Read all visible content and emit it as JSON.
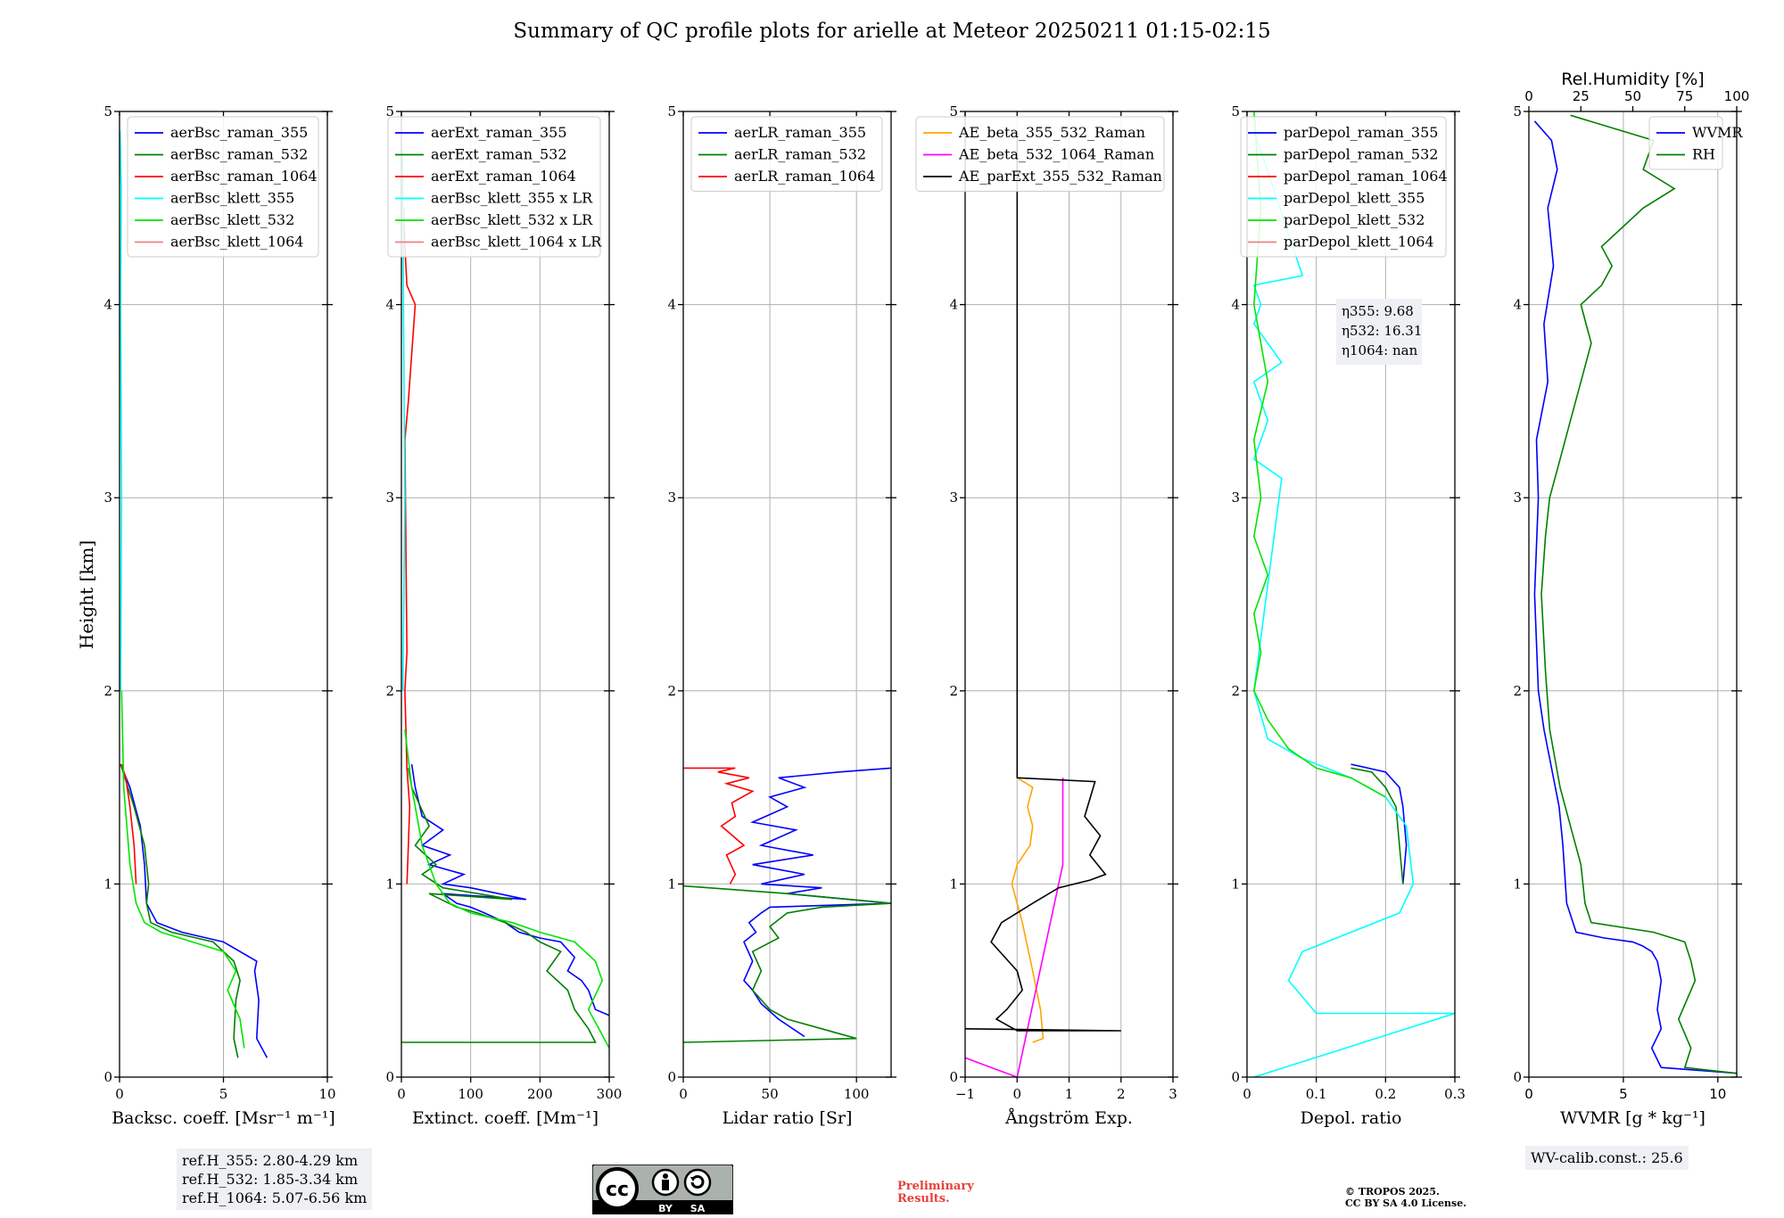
{
  "title": "Summary of QC profile plots for arielle at Meteor 20250211 01:15-02:15",
  "y_label": "Height [km]",
  "ref_heights": [
    "ref.H_355: 2.80-4.29 km",
    "ref.H_532: 1.85-3.34 km",
    "ref.H_1064: 5.07-6.56 km"
  ],
  "wv_calib": "WV-calib.const.: 25.6",
  "prelim": [
    "Preliminary",
    "Results."
  ],
  "copyright": [
    "© TROPOS 2025.",
    "CC BY SA 4.0 License."
  ],
  "cc_badge": {
    "by": "BY",
    "sa": "SA",
    "cc": "cc"
  },
  "colors": {
    "blue": "#0000ff",
    "green": "#008000",
    "red": "#ff0000",
    "cyan": "#00ffff",
    "lime": "#00e600",
    "pink": "#f08080",
    "orange": "#ffa500",
    "magenta": "#ff00ff",
    "black": "#000000"
  },
  "chart_data": [
    {
      "type": "line",
      "xlabel": "Backsc. coeff. [Msr⁻¹ m⁻¹]",
      "ylabel": "Height [km]",
      "xlim": [
        0,
        10
      ],
      "ylim": [
        0,
        5
      ],
      "xticks": [
        0,
        5,
        10
      ],
      "yticks": [
        0,
        1,
        2,
        3,
        4,
        5
      ],
      "grid": true,
      "legend": "top-right",
      "series": [
        {
          "name": "aerBsc_raman_355",
          "color": "#0000ff",
          "x": [
            7.1,
            6.6,
            6.7,
            6.5,
            6.6,
            5.0,
            3.0,
            1.8,
            1.3,
            1.2,
            1.0,
            0.5,
            0.05
          ],
          "y": [
            0.1,
            0.2,
            0.4,
            0.55,
            0.6,
            0.7,
            0.75,
            0.8,
            0.9,
            1.1,
            1.3,
            1.5,
            1.62
          ]
        },
        {
          "name": "aerBsc_raman_532",
          "color": "#008000",
          "x": [
            5.7,
            5.5,
            5.6,
            5.8,
            5.5,
            4.5,
            2.5,
            1.5,
            1.3,
            1.4,
            1.2,
            0.7,
            0.05
          ],
          "y": [
            0.1,
            0.2,
            0.4,
            0.5,
            0.6,
            0.7,
            0.75,
            0.8,
            0.9,
            1.0,
            1.2,
            1.4,
            1.62
          ]
        },
        {
          "name": "aerBsc_raman_1064",
          "color": "#ff0000",
          "x": [
            0.8,
            0.7,
            0.5,
            0.3,
            0.1
          ],
          "y": [
            1.0,
            1.2,
            1.4,
            1.55,
            1.62
          ]
        },
        {
          "name": "aerBsc_klett_355",
          "color": "#00ffff",
          "x": [
            0.05,
            0.1,
            0.05,
            0.08,
            0.02
          ],
          "y": [
            2.0,
            3.0,
            4.0,
            4.6,
            4.9
          ]
        },
        {
          "name": "aerBsc_klett_532",
          "color": "#00e600",
          "x": [
            6.0,
            5.8,
            5.2,
            5.6,
            5.0,
            3.5,
            2.0,
            1.2,
            0.8,
            0.5,
            0.2,
            0.1
          ],
          "y": [
            0.15,
            0.3,
            0.45,
            0.55,
            0.65,
            0.7,
            0.75,
            0.8,
            0.9,
            1.1,
            1.5,
            2.0
          ]
        },
        {
          "name": "aerBsc_klett_1064",
          "color": "#f08080",
          "x": [],
          "y": []
        }
      ]
    },
    {
      "type": "line",
      "xlabel": "Extinct. coeff. [Mm⁻¹]",
      "ylabel": "",
      "xlim": [
        0,
        300
      ],
      "ylim": [
        0,
        5
      ],
      "xticks": [
        0,
        100,
        200,
        300
      ],
      "yticks": [
        0,
        1,
        2,
        3,
        4,
        5
      ],
      "grid": true,
      "legend": "top-right",
      "series": [
        {
          "name": "aerExt_raman_355",
          "color": "#0000ff",
          "x": [
            300,
            280,
            270,
            260,
            240,
            250,
            230,
            200,
            170,
            150,
            120,
            100,
            80,
            60,
            180,
            100,
            60,
            90,
            40,
            70,
            30,
            60,
            30,
            20,
            15
          ],
          "y": [
            0.32,
            0.35,
            0.45,
            0.5,
            0.55,
            0.62,
            0.7,
            0.72,
            0.75,
            0.8,
            0.85,
            0.88,
            0.9,
            0.95,
            0.92,
            0.98,
            1.0,
            1.05,
            1.1,
            1.15,
            1.2,
            1.28,
            1.35,
            1.5,
            1.62
          ]
        },
        {
          "name": "aerExt_raman_532",
          "color": "#008000",
          "x": [
            0,
            280,
            270,
            250,
            240,
            210,
            230,
            200,
            180,
            150,
            110,
            80,
            40,
            160,
            60,
            30,
            50,
            20,
            40,
            15,
            10
          ],
          "y": [
            0.18,
            0.18,
            0.25,
            0.35,
            0.45,
            0.55,
            0.65,
            0.7,
            0.75,
            0.8,
            0.85,
            0.88,
            0.95,
            0.92,
            0.98,
            1.05,
            1.1,
            1.2,
            1.3,
            1.5,
            1.6
          ]
        },
        {
          "name": "aerExt_raman_1064",
          "color": "#ff0000",
          "x": [
            8,
            10,
            12,
            8,
            5,
            8,
            5,
            10,
            20,
            8,
            5,
            3
          ],
          "y": [
            1.0,
            1.2,
            1.4,
            1.6,
            2.0,
            2.2,
            3.3,
            3.5,
            4.0,
            4.1,
            4.3,
            4.5
          ]
        },
        {
          "name": "aerBsc_klett_355 x LR",
          "color": "#00ffff",
          "x": [
            2,
            5,
            3,
            2
          ],
          "y": [
            2.0,
            3.0,
            4.0,
            4.8
          ]
        },
        {
          "name": "aerBsc_klett_532 x LR",
          "color": "#00e600",
          "x": [
            300,
            285,
            270,
            290,
            280,
            250,
            200,
            160,
            100,
            70,
            50,
            30,
            15,
            5
          ],
          "y": [
            0.15,
            0.25,
            0.35,
            0.5,
            0.6,
            0.7,
            0.75,
            0.8,
            0.85,
            0.9,
            1.0,
            1.2,
            1.5,
            1.8
          ]
        },
        {
          "name": "aerBsc_klett_1064 x LR",
          "color": "#f08080",
          "x": [],
          "y": []
        }
      ]
    },
    {
      "type": "line",
      "xlabel": "Lidar ratio [Sr]",
      "ylabel": "",
      "xlim": [
        0,
        120
      ],
      "ylim": [
        0,
        5
      ],
      "xticks": [
        0,
        50,
        100
      ],
      "yticks": [
        0,
        1,
        2,
        3,
        4,
        5
      ],
      "grid": true,
      "legend": "top-right",
      "series": [
        {
          "name": "aerLR_raman_355",
          "color": "#0000ff",
          "x": [
            70,
            55,
            45,
            40,
            35,
            40,
            35,
            42,
            38,
            45,
            50,
            120,
            60,
            80,
            45,
            70,
            40,
            75,
            45,
            65,
            40,
            60,
            50,
            70,
            55,
            90,
            120
          ],
          "y": [
            0.21,
            0.3,
            0.38,
            0.45,
            0.5,
            0.6,
            0.7,
            0.75,
            0.8,
            0.85,
            0.88,
            0.9,
            0.95,
            0.98,
            1.0,
            1.05,
            1.1,
            1.15,
            1.2,
            1.28,
            1.32,
            1.4,
            1.45,
            1.5,
            1.55,
            1.58,
            1.6
          ]
        },
        {
          "name": "aerLR_raman_532",
          "color": "#008000",
          "x": [
            0,
            100,
            80,
            60,
            50,
            40,
            45,
            40,
            55,
            50,
            60,
            80,
            120,
            60,
            0
          ],
          "y": [
            0.18,
            0.2,
            0.25,
            0.3,
            0.35,
            0.45,
            0.55,
            0.65,
            0.72,
            0.78,
            0.85,
            0.88,
            0.9,
            0.95,
            0.99
          ]
        },
        {
          "name": "aerLR_raman_1064",
          "color": "#ff0000",
          "x": [
            27,
            30,
            25,
            35,
            22,
            30,
            28,
            40,
            25,
            38,
            20,
            30,
            0
          ],
          "y": [
            1.0,
            1.05,
            1.15,
            1.2,
            1.3,
            1.35,
            1.42,
            1.48,
            1.52,
            1.55,
            1.58,
            1.6,
            1.6
          ]
        }
      ]
    },
    {
      "type": "line",
      "xlabel": "Ångström Exp.",
      "ylabel": "",
      "xlim": [
        -1,
        3
      ],
      "ylim": [
        0,
        5
      ],
      "xticks": [
        -1,
        0,
        1,
        2,
        3
      ],
      "yticks": [
        0,
        1,
        2,
        3,
        4,
        5
      ],
      "grid": true,
      "legend": "top-right",
      "series": [
        {
          "name": "AE_beta_355_532_Raman",
          "color": "#ffa500",
          "x": [
            0.3,
            0.5,
            0.45,
            0.3,
            0.1,
            -0.1,
            0.0,
            0.25,
            0.3,
            0.2,
            0.3,
            0.0
          ],
          "y": [
            0.18,
            0.2,
            0.35,
            0.55,
            0.8,
            1.0,
            1.1,
            1.2,
            1.3,
            1.4,
            1.5,
            1.55
          ]
        },
        {
          "name": "AE_beta_532_1064_Raman",
          "color": "#ff00ff",
          "x": [
            -1,
            -0.5,
            0.0,
            0.88,
            0.88
          ],
          "y": [
            0.1,
            0.05,
            0.0,
            1.1,
            1.55
          ]
        },
        {
          "name": "AE_parExt_355_532_Raman",
          "color": "#000000",
          "x": [
            -1,
            2.0,
            0.0,
            -0.4,
            -0.2,
            0.1,
            0.0,
            -0.5,
            -0.3,
            0.3,
            0.8,
            1.4,
            1.7,
            1.4,
            1.6,
            1.3,
            1.5,
            0.0,
            0.0
          ],
          "y": [
            0.25,
            0.24,
            0.24,
            0.3,
            0.35,
            0.45,
            0.55,
            0.7,
            0.8,
            0.9,
            0.98,
            1.02,
            1.05,
            1.15,
            1.25,
            1.35,
            1.53,
            1.55,
            4.9
          ]
        }
      ]
    },
    {
      "type": "line",
      "xlabel": "Depol. ratio",
      "ylabel": "",
      "xlim": [
        0,
        0.3
      ],
      "ylim": [
        0,
        5
      ],
      "xticks": [
        0,
        0.1,
        0.2,
        0.3
      ],
      "yticks": [
        0,
        1,
        2,
        3,
        4,
        5
      ],
      "grid": true,
      "legend": "top-right",
      "series": [
        {
          "name": "parDepol_raman_355",
          "color": "#0000ff",
          "x": [
            0.225,
            0.23,
            0.225,
            0.22,
            0.2,
            0.15
          ],
          "y": [
            1.0,
            1.2,
            1.4,
            1.5,
            1.58,
            1.62
          ]
        },
        {
          "name": "parDepol_raman_532",
          "color": "#008000",
          "x": [
            0.225,
            0.22,
            0.215,
            0.2,
            0.18,
            0.15
          ],
          "y": [
            1.0,
            1.2,
            1.4,
            1.5,
            1.58,
            1.6
          ]
        },
        {
          "name": "parDepol_raman_1064",
          "color": "#ff0000",
          "x": [],
          "y": []
        },
        {
          "name": "parDepol_klett_355",
          "color": "#00ffff",
          "x": [
            0.01,
            0.3,
            0.1,
            0.06,
            0.08,
            0.15,
            0.22,
            0.24,
            0.23,
            0.2,
            0.15,
            0.08,
            0.03,
            0.01,
            0.05,
            0.01,
            0.03,
            0.01,
            0.05,
            0.01,
            0.02,
            0.01,
            0.08,
            0.01
          ],
          "y": [
            0.0,
            0.33,
            0.33,
            0.5,
            0.65,
            0.75,
            0.85,
            1.0,
            1.3,
            1.45,
            1.55,
            1.65,
            1.75,
            2.0,
            3.1,
            3.2,
            3.4,
            3.6,
            3.7,
            3.9,
            4.0,
            4.1,
            4.15,
            4.9
          ]
        },
        {
          "name": "parDepol_klett_532",
          "color": "#00e600",
          "x": [
            0.2,
            0.15,
            0.1,
            0.06,
            0.03,
            0.01,
            0.02,
            0.01,
            0.03,
            0.01,
            0.02,
            0.01,
            0.03,
            0.01,
            0.02,
            0.01
          ],
          "y": [
            1.45,
            1.55,
            1.6,
            1.7,
            1.85,
            2.0,
            2.2,
            2.4,
            2.6,
            2.8,
            3.0,
            3.3,
            3.6,
            4.0,
            4.5,
            5.0
          ]
        },
        {
          "name": "parDepol_klett_1064",
          "color": "#f08080",
          "x": [],
          "y": []
        }
      ],
      "annotation": [
        "η355: 9.68",
        "η532: 16.31",
        "η1064: nan"
      ]
    },
    {
      "type": "line",
      "xlabel": "WVMR [g * kg⁻¹]",
      "ylabel": "",
      "x2label": "Rel.Humidity [%]",
      "x2lim": [
        0,
        100
      ],
      "x2ticks": [
        0,
        25,
        50,
        75,
        100
      ],
      "xlim": [
        0,
        11
      ],
      "ylim": [
        0,
        5
      ],
      "xticks": [
        0,
        5,
        10
      ],
      "yticks": [
        0,
        1,
        2,
        3,
        4,
        5
      ],
      "grid": true,
      "legend": "top-right",
      "series": [
        {
          "name": "WVMR",
          "color": "#0000ff",
          "x": [
            11,
            7,
            6.5,
            7,
            6.8,
            7,
            6.8,
            6.5,
            6.0,
            5.5,
            4.0,
            2.5,
            2.0,
            1.8,
            1.6,
            1.2,
            0.8,
            0.5,
            0.3,
            0.5,
            0.4,
            1.0,
            0.8,
            1.3,
            1.0,
            1.5,
            1.2,
            0.3
          ],
          "y": [
            0.02,
            0.05,
            0.15,
            0.25,
            0.35,
            0.5,
            0.6,
            0.65,
            0.68,
            0.7,
            0.72,
            0.75,
            0.9,
            1.2,
            1.4,
            1.6,
            1.8,
            2.0,
            2.5,
            3.0,
            3.3,
            3.6,
            3.9,
            4.2,
            4.5,
            4.7,
            4.85,
            4.95
          ]
        },
        {
          "name": "RH",
          "color": "#008000",
          "x2": [
            100,
            75,
            78,
            72,
            80,
            78,
            75,
            60,
            30,
            27,
            25,
            20,
            15,
            10,
            8,
            6,
            8,
            10,
            15,
            20,
            25,
            30,
            25,
            35,
            40,
            35,
            45,
            55,
            70,
            55,
            60,
            20
          ],
          "y": [
            0.02,
            0.05,
            0.15,
            0.3,
            0.5,
            0.6,
            0.7,
            0.75,
            0.8,
            0.9,
            1.1,
            1.3,
            1.5,
            1.8,
            2.1,
            2.5,
            2.8,
            3.0,
            3.2,
            3.4,
            3.6,
            3.8,
            4.0,
            4.1,
            4.2,
            4.3,
            4.4,
            4.5,
            4.6,
            4.7,
            4.85,
            4.98
          ]
        }
      ]
    }
  ]
}
